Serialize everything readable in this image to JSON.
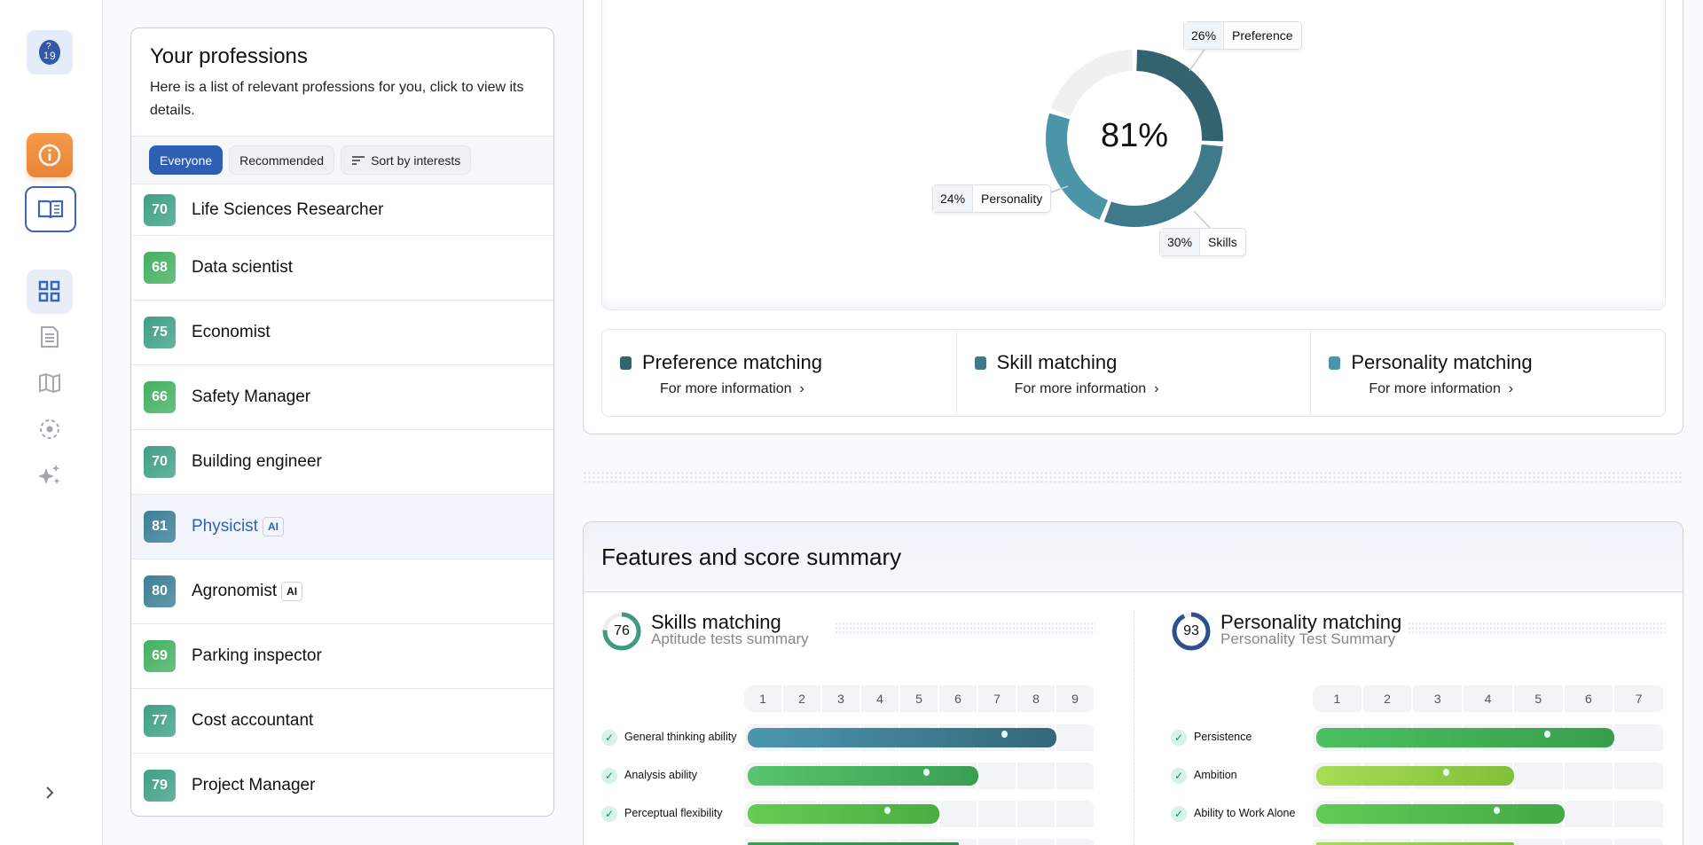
{
  "sidebar": {
    "items": [
      {
        "icon": "logo-icon"
      },
      {
        "icon": "info-icon"
      },
      {
        "icon": "book-icon"
      },
      {
        "icon": "grid-icon"
      },
      {
        "icon": "document-icon"
      },
      {
        "icon": "map-icon"
      },
      {
        "icon": "target-icon"
      },
      {
        "icon": "sparkles-icon"
      },
      {
        "icon": "chevron-right-icon"
      }
    ]
  },
  "professions": {
    "title": "Your professions",
    "subtitle": "Here is a list of relevant professions for you, click to view its details.",
    "filters": [
      "Everyone",
      "Recommended",
      "Sort by interests"
    ],
    "items": [
      {
        "score": "70",
        "name": "Life Sciences Researcher",
        "color": "#3fa086"
      },
      {
        "score": "68",
        "name": "Data scientist",
        "color": "#44b060"
      },
      {
        "score": "75",
        "name": "Economist",
        "color": "#3fa086"
      },
      {
        "score": "66",
        "name": "Safety Manager",
        "color": "#44b060"
      },
      {
        "score": "70",
        "name": "Building engineer",
        "color": "#3fa086"
      },
      {
        "score": "81",
        "name": "Physicist",
        "ai": "AI",
        "color": "#3d7f96",
        "selected": true
      },
      {
        "score": "80",
        "name": "Agronomist",
        "ai": "AI",
        "color": "#3d7f96"
      },
      {
        "score": "69",
        "name": "Parking inspector",
        "color": "#44b060"
      },
      {
        "score": "77",
        "name": "Cost accountant",
        "color": "#3fa086"
      },
      {
        "score": "79",
        "name": "Project Manager",
        "color": "#3fa086"
      }
    ]
  },
  "chart_data": {
    "type": "pie",
    "center_label": "81%",
    "slices": [
      {
        "label": "Preference",
        "percent_label": "26%",
        "value": 26,
        "color": "#33636f"
      },
      {
        "label": "Skills",
        "percent_label": "30%",
        "value": 30,
        "color": "#3f7a8a"
      },
      {
        "label": "Personality",
        "percent_label": "24%",
        "value": 24,
        "color": "#4b95a8"
      },
      {
        "value": 20,
        "color": "#f0f0f0"
      }
    ]
  },
  "matching": [
    {
      "title": "Preference matching",
      "link": "For more information",
      "color": "#33636f"
    },
    {
      "title": "Skill matching",
      "link": "For more information",
      "color": "#3f7a8a"
    },
    {
      "title": "Personality matching",
      "link": "For more information",
      "color": "#4b95a8"
    }
  ],
  "features": {
    "title": "Features and score summary",
    "skills": {
      "score": "76",
      "title": "Skills matching",
      "subtitle": "Aptitude tests summary",
      "scale": [
        "1",
        "2",
        "3",
        "4",
        "5",
        "6",
        "7",
        "8",
        "9"
      ],
      "ring_color": "#3f9a84",
      "rows": [
        {
          "label": "General thinking ability",
          "value": 8,
          "color": "linear-gradient(90deg,#4b97b0,#34687a)"
        },
        {
          "label": "Analysis ability",
          "value": 6,
          "color": "linear-gradient(90deg,#57c56e,#3a9e52)"
        },
        {
          "label": "Perceptual flexibility",
          "value": 5,
          "color": "linear-gradient(90deg,#66cc55,#4aad40)"
        },
        {
          "value": 5.5,
          "color": "linear-gradient(90deg,#3a9e52,#2f8a48)"
        }
      ]
    },
    "personality": {
      "score": "93",
      "title": "Personality matching",
      "subtitle": "Personality Test Summary",
      "scale": [
        "1",
        "2",
        "3",
        "4",
        "5",
        "6",
        "7"
      ],
      "ring_color": "#2f4f8f",
      "rows": [
        {
          "label": "Persistence",
          "value": 6,
          "color": "linear-gradient(90deg,#4cc060,#389e4c)"
        },
        {
          "label": "Ambition",
          "value": 4,
          "color": "linear-gradient(90deg,#a8dc55,#82c03a)"
        },
        {
          "label": "Ability to Work Alone",
          "value": 5,
          "color": "linear-gradient(90deg,#60cc55,#44a844)"
        },
        {
          "value": 4,
          "color": "linear-gradient(90deg,#a8dc55,#82c03a)"
        }
      ]
    }
  }
}
